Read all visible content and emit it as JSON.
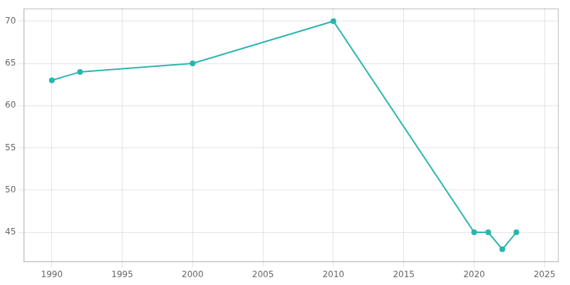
{
  "chart_data": {
    "type": "line",
    "x": [
      1990,
      1992,
      2000,
      2010,
      2020,
      2021,
      2022,
      2023
    ],
    "values": [
      63,
      64,
      65,
      70,
      45,
      45,
      43,
      45
    ],
    "color": "#2ab5b0",
    "marker": "circle",
    "xlim": [
      1988,
      2026
    ],
    "xticks": [
      1990,
      1995,
      2000,
      2005,
      2010,
      2015,
      2020,
      2025
    ],
    "ylim": [
      41.5,
      71.5
    ],
    "yticks": [
      45,
      50,
      55,
      60,
      65,
      70
    ],
    "grid": true
  }
}
